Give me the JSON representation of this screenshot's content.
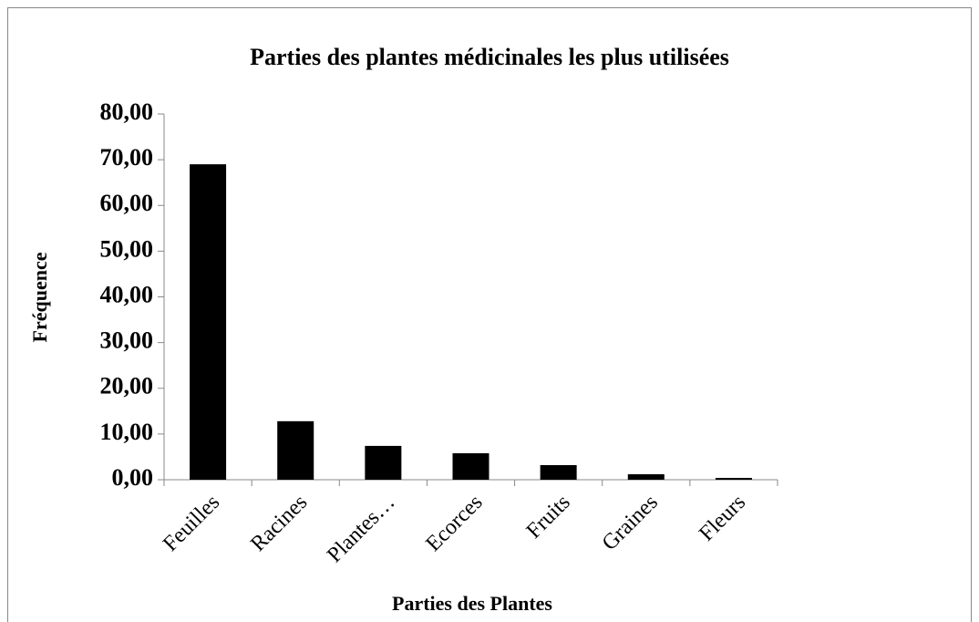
{
  "chart_data": {
    "type": "bar",
    "title": "Parties des plantes médicinales les plus utilisées",
    "x_label": "Parties des Plantes",
    "y_label": "Fréquence",
    "categories": [
      "Feuilles",
      "Racines",
      "Plantes…",
      "Ecorces",
      "Fruits",
      "Graines",
      "Fleurs"
    ],
    "values": [
      69,
      12.8,
      7.4,
      5.8,
      3.2,
      1.2,
      0.4
    ],
    "color": "#000000",
    "ylim": [
      0,
      80
    ],
    "yticks": [
      {
        "value": 0,
        "label": "0,00"
      },
      {
        "value": 10,
        "label": "10,00"
      },
      {
        "value": 20,
        "label": "20,00"
      },
      {
        "value": 30,
        "label": "30,00"
      },
      {
        "value": 40,
        "label": "40,00"
      },
      {
        "value": 50,
        "label": "50,00"
      },
      {
        "value": 60,
        "label": "60,00"
      },
      {
        "value": 70,
        "label": "70,00"
      },
      {
        "value": 80,
        "label": "80,00"
      }
    ],
    "grid": false
  }
}
